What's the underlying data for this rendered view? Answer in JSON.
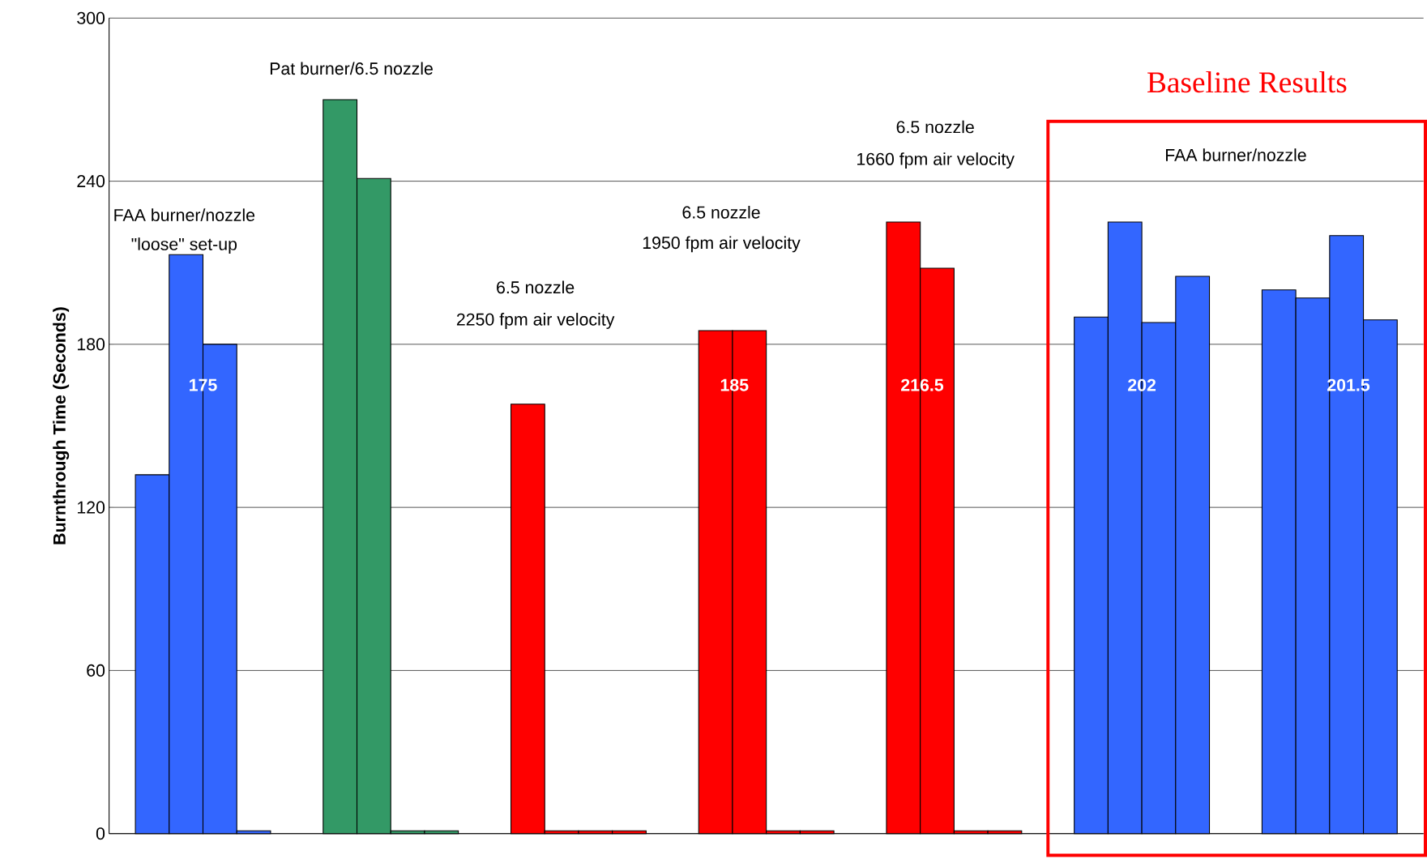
{
  "chart_data": {
    "type": "bar",
    "ylabel": "Burnthrough Time (Seconds)",
    "categories": [
      null,
      null,
      null,
      null,
      null,
      null,
      null
    ],
    "series": [
      {
        "colors": [
          "#3366ff",
          "#339966",
          "#ff0000",
          "#ff0000",
          "#ff0000",
          "#3366ff",
          "#3366ff"
        ],
        "values": [
          132,
          270,
          158,
          185,
          225,
          190,
          200
        ]
      },
      {
        "colors": [
          "#3366ff",
          "#339966",
          "#ff0000",
          "#ff0000",
          "#ff0000",
          "#3366ff",
          "#3366ff"
        ],
        "values": [
          213,
          241,
          1,
          185,
          208,
          225,
          197
        ]
      },
      {
        "colors": [
          "#3366ff",
          "#339966",
          "#ff0000",
          "#ff0000",
          "#ff0000",
          "#3366ff",
          "#3366ff"
        ],
        "values": [
          180,
          1,
          1,
          1,
          1,
          188,
          220
        ]
      },
      {
        "colors": [
          "#3366ff",
          "#339966",
          "#ff0000",
          "#ff0000",
          "#ff0000",
          "#3366ff",
          "#3366ff"
        ],
        "values": [
          1,
          1,
          1,
          1,
          1,
          205,
          189
        ]
      }
    ],
    "ylim": [
      0,
      300
    ],
    "yticks": [
      0,
      60,
      120,
      180,
      240,
      300
    ],
    "grid": "y",
    "tick_labels": "y",
    "annotations": [
      "Pat burner/6.5 nozzle",
      "FAA burner/nozzle",
      "\"loose\" set-up",
      "6.5 nozzle",
      "2250 fpm air velocity",
      "6.5 nozzle",
      "1950 fpm air velocity",
      "6.5 nozzle",
      "1660 fpm air velocity",
      "FAA burner/nozzle",
      "Baseline Results",
      "175",
      "185",
      "216.5",
      "202",
      "201.5"
    ]
  }
}
